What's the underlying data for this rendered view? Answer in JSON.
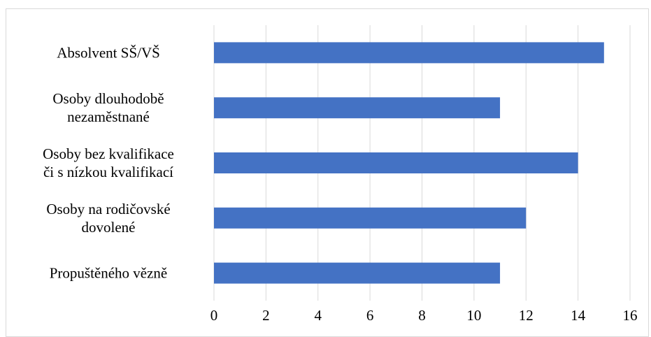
{
  "chart_data": {
    "type": "bar",
    "orientation": "horizontal",
    "title": "",
    "xlabel": "",
    "ylabel": "",
    "categories": [
      [
        "Absolvent SŠ/VŠ"
      ],
      [
        "Osoby dlouhodobě",
        "nezaměstnané"
      ],
      [
        "Osoby bez kvalifikace",
        "či s nízkou kvalifikací"
      ],
      [
        "Osoby na rodičovské",
        "dovolené"
      ],
      [
        "Propuštěného vězně"
      ]
    ],
    "values": [
      15,
      11,
      14,
      12,
      11
    ],
    "xlim": [
      0,
      16
    ],
    "xticks": [
      "0",
      "2",
      "4",
      "6",
      "8",
      "10",
      "12",
      "14",
      "16"
    ],
    "grid": true,
    "legend": "none",
    "bar_color": "#4472C4",
    "grid_color": "#d9d9d9"
  }
}
